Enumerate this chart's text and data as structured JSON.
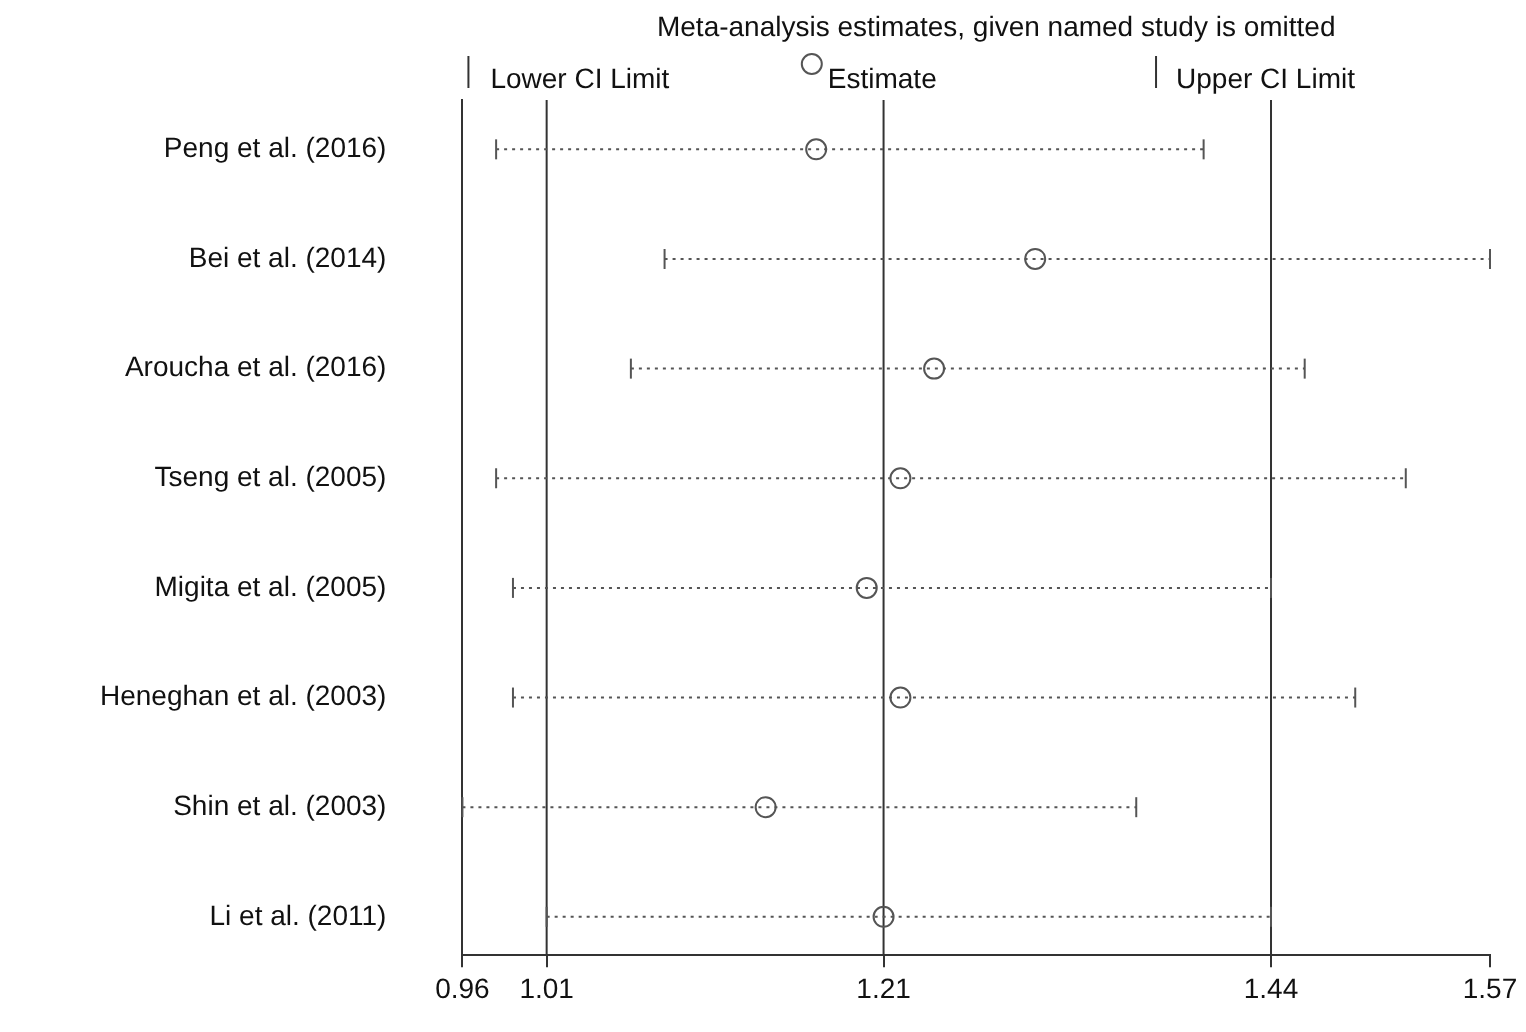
{
  "chart_data": {
    "type": "scatter",
    "orientation": "horizontal",
    "title": "Meta-analysis estimates, given named study is omitted",
    "categories": [
      "Peng et al. (2016)",
      "Bei et al. (2014)",
      "Aroucha et al. (2016)",
      "Tseng et al. (2005)",
      "Migita et al. (2005)",
      "Heneghan et al. (2003)",
      "Shin et al. (2003)",
      "Li et al. (2011)"
    ],
    "series": [
      {
        "name": "Estimate",
        "color": "#555555",
        "values": [
          1.17,
          1.3,
          1.24,
          1.22,
          1.2,
          1.22,
          1.14,
          1.21
        ],
        "errors": [
          [
            0.98,
            1.4
          ],
          [
            1.08,
            1.57
          ],
          [
            1.06,
            1.46
          ],
          [
            0.98,
            1.52
          ],
          [
            0.99,
            1.44
          ],
          [
            0.99,
            1.49
          ],
          [
            0.96,
            1.36
          ],
          [
            1.01,
            1.44
          ]
        ]
      }
    ],
    "annotations": [
      "Lower CI Limit",
      "Upper CI Limit"
    ],
    "xlim": [
      0.96,
      1.57
    ],
    "xticks": [
      0.96,
      1.01,
      1.21,
      1.44,
      1.57
    ],
    "ref_lines": [
      {
        "axis": "x",
        "value": 1.01,
        "color": "#333333"
      },
      {
        "axis": "x",
        "value": 1.21,
        "color": "#333333"
      },
      {
        "axis": "x",
        "value": 1.44,
        "color": "#333333"
      }
    ],
    "marker": "circle",
    "line_style": "dotted",
    "grid": false,
    "legend": "top"
  }
}
